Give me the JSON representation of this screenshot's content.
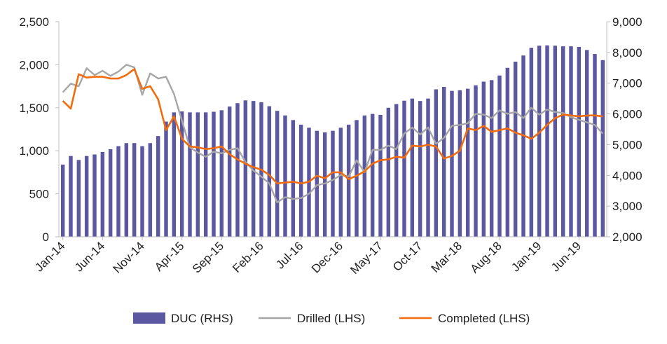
{
  "chart_data": {
    "type": "bar",
    "title": "",
    "xlabel": "",
    "ylabel_left": "",
    "ylabel_right": "",
    "grid": false,
    "legend_position": "bottom",
    "x": [
      "Jan-14",
      "Feb-14",
      "Mar-14",
      "Apr-14",
      "May-14",
      "Jun-14",
      "Jul-14",
      "Aug-14",
      "Sep-14",
      "Oct-14",
      "Nov-14",
      "Dec-14",
      "Jan-15",
      "Feb-15",
      "Mar-15",
      "Apr-15",
      "May-15",
      "Jun-15",
      "Jul-15",
      "Aug-15",
      "Sep-15",
      "Oct-15",
      "Nov-15",
      "Dec-15",
      "Jan-16",
      "Feb-16",
      "Mar-16",
      "Apr-16",
      "May-16",
      "Jun-16",
      "Jul-16",
      "Aug-16",
      "Sep-16",
      "Oct-16",
      "Nov-16",
      "Dec-16",
      "Jan-17",
      "Feb-17",
      "Mar-17",
      "Apr-17",
      "May-17",
      "Jun-17",
      "Jul-17",
      "Aug-17",
      "Sep-17",
      "Oct-17",
      "Nov-17",
      "Dec-17",
      "Jan-18",
      "Feb-18",
      "Mar-18",
      "Apr-18",
      "May-18",
      "Jun-18",
      "Jul-18",
      "Aug-18",
      "Sep-18",
      "Oct-18",
      "Nov-18",
      "Dec-18",
      "Jan-19",
      "Feb-19",
      "Mar-19",
      "Apr-19",
      "May-19",
      "Jun-19",
      "Jul-19",
      "Aug-19",
      "Sep-19"
    ],
    "x_tick_labels": [
      "Jan-14",
      "Jun-14",
      "Nov-14",
      "Apr-15",
      "Sep-15",
      "Feb-16",
      "Jul-16",
      "Dec-16",
      "May-17",
      "Oct-17",
      "Mar-18",
      "Aug-18",
      "Jan-19",
      "Jun-19"
    ],
    "y_left": {
      "min": 0,
      "max": 2500,
      "ticks": [
        "0",
        "500",
        "1,000",
        "1,500",
        "2,000",
        "2,500"
      ]
    },
    "y_right": {
      "min": 2000,
      "max": 9000,
      "ticks": [
        "2,000",
        "3,000",
        "4,000",
        "5,000",
        "6,000",
        "7,000",
        "8,000",
        "9,000"
      ]
    },
    "series": [
      {
        "name": "DUC (RHS)",
        "type": "bar",
        "axis": "right",
        "color": "#5b57a1",
        "values": [
          4350,
          4630,
          4500,
          4630,
          4680,
          4760,
          4850,
          4950,
          5050,
          5050,
          4950,
          5050,
          5280,
          5750,
          6050,
          6080,
          6050,
          6050,
          6050,
          6070,
          6120,
          6240,
          6350,
          6440,
          6420,
          6380,
          6250,
          6100,
          5950,
          5800,
          5650,
          5550,
          5450,
          5400,
          5450,
          5550,
          5650,
          5800,
          5950,
          6000,
          5970,
          6200,
          6320,
          6430,
          6500,
          6420,
          6500,
          6800,
          6880,
          6750,
          6770,
          6820,
          6930,
          7050,
          7100,
          7250,
          7500,
          7700,
          7900,
          8150,
          8220,
          8230,
          8220,
          8200,
          8200,
          8180,
          8080,
          7950,
          7750
        ]
      },
      {
        "name": "Drilled (LHS)",
        "type": "line",
        "axis": "left",
        "color": "#a6a6a6",
        "values": [
          1680,
          1780,
          1750,
          1960,
          1880,
          1930,
          1870,
          1920,
          2000,
          1970,
          1650,
          1900,
          1840,
          1860,
          1660,
          1350,
          1040,
          980,
          930,
          990,
          970,
          1010,
          1030,
          870,
          770,
          700,
          620,
          400,
          460,
          440,
          450,
          500,
          600,
          620,
          660,
          720,
          700,
          890,
          750,
          1010,
          1010,
          1060,
          1020,
          1200,
          1270,
          1190,
          1270,
          1080,
          1150,
          1290,
          1300,
          1320,
          1430,
          1420,
          1380,
          1470,
          1430,
          1450,
          1380,
          1500,
          1420,
          1480,
          1450,
          1440,
          1390,
          1360,
          1330,
          1300,
          1200
        ]
      },
      {
        "name": "Completed (LHS)",
        "type": "line",
        "axis": "left",
        "color": "#f26c0d",
        "values": [
          1580,
          1490,
          1890,
          1850,
          1860,
          1860,
          1840,
          1840,
          1880,
          1950,
          1720,
          1750,
          1600,
          1240,
          1400,
          1140,
          1050,
          1040,
          1020,
          1030,
          1050,
          960,
          900,
          850,
          810,
          780,
          720,
          620,
          630,
          640,
          620,
          640,
          710,
          680,
          750,
          750,
          670,
          710,
          760,
          850,
          890,
          900,
          930,
          920,
          1060,
          1050,
          1070,
          1050,
          910,
          940,
          1000,
          1260,
          1240,
          1290,
          1220,
          1240,
          1260,
          1210,
          1180,
          1140,
          1210,
          1300,
          1380,
          1420,
          1410,
          1400,
          1410,
          1410,
          1400
        ]
      }
    ]
  }
}
